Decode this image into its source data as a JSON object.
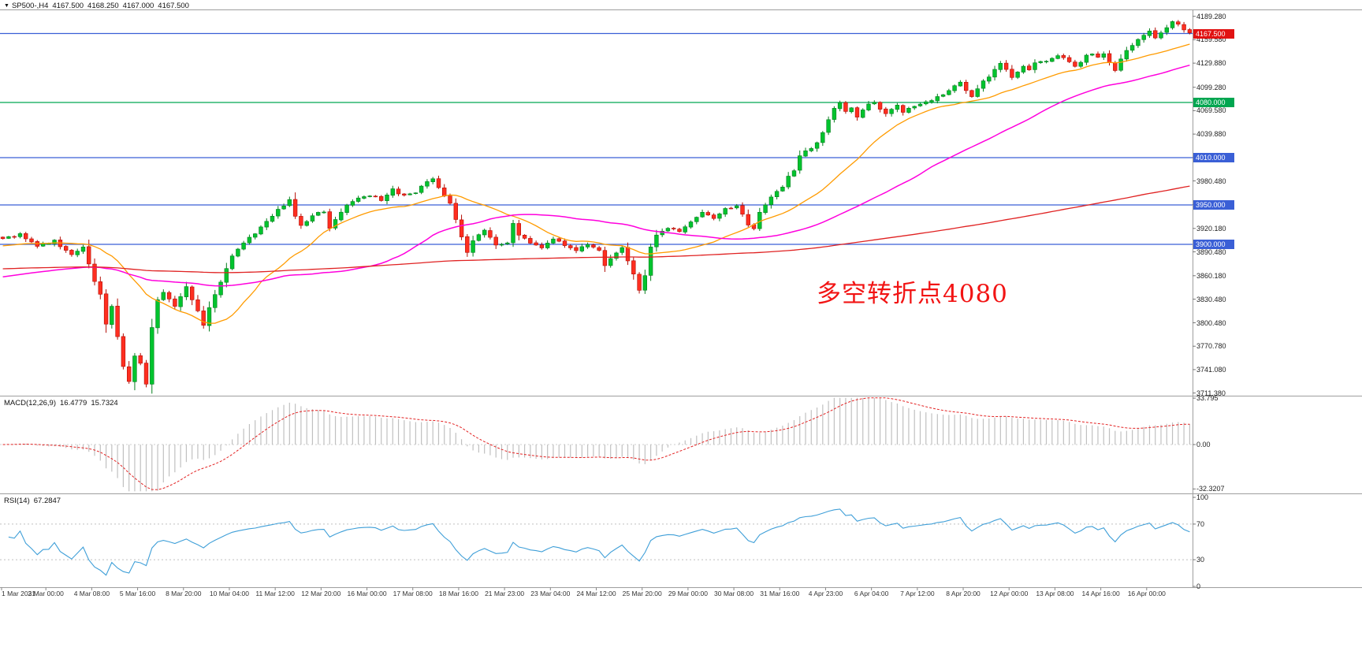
{
  "header": {
    "dropdown_icon": "▼",
    "symbol": "SP500-,H4",
    "open": "4167.500",
    "high": "4168.250",
    "low": "4167.000",
    "close": "4167.500"
  },
  "indicators": {
    "macd": {
      "label": "MACD(12,26,9)",
      "value_macd": "16.4779",
      "value_signal": "15.7324"
    },
    "rsi": {
      "label": "RSI(14)",
      "value": "67.2847"
    }
  },
  "annotation": {
    "text": "多空转折点4080",
    "color": "#f21414"
  },
  "chart_data": {
    "type": "candlestick",
    "symbol": "SP500-",
    "timeframe": "H4",
    "bars": 208,
    "quote": {
      "open": 4167.5,
      "high": 4168.25,
      "low": 4167.0,
      "close": 4167.5
    },
    "price_axis": {
      "side": "right",
      "top_price": 4198,
      "bottom_price": 3709,
      "ticks": [
        "4189.280",
        "4159.580",
        "4129.880",
        "4099.280",
        "4069.580",
        "4039.880",
        "4010.180",
        "3980.480",
        "3950.480",
        "3920.180",
        "3890.480",
        "3860.180",
        "3830.480",
        "3800.480",
        "3770.780",
        "3741.080",
        "3711.380"
      ]
    },
    "levels": [
      {
        "name": "current-price",
        "price": 4167.5,
        "line_color": "#3a5fd6",
        "badge": "4167.500",
        "badge_color": "#e11212"
      },
      {
        "name": "pivot-4080",
        "price": 4080,
        "line_color": "#00a650",
        "badge": "4080.000",
        "badge_color": "#00a650"
      },
      {
        "name": "level-4010",
        "price": 4010,
        "line_color": "#3a5fd6",
        "badge": "4010.000",
        "badge_color": "#3a5fd6"
      },
      {
        "name": "level-3950",
        "price": 3950,
        "line_color": "#3a5fd6",
        "badge": "3950.000",
        "badge_color": "#3a5fd6"
      },
      {
        "name": "level-3900",
        "price": 3900,
        "line_color": "#3a5fd6",
        "badge": "3900.000",
        "badge_color": "#3a5fd6"
      }
    ],
    "candle_colors": {
      "up": "#00c42e",
      "up_border": "#067f1e",
      "down": "#fe2e20",
      "down_border": "#b30d05"
    },
    "moving_averages": [
      {
        "name": "fast",
        "period": 20,
        "prehistory": 3898,
        "color": "#ff9b00",
        "width": 1.3
      },
      {
        "name": "mid",
        "period": 50,
        "prehistory": 3858,
        "color": "#ff00dd",
        "width": 1.5
      },
      {
        "name": "slow",
        "period": 200,
        "prehistory": 3869,
        "color": "#e02222",
        "width": 1.3
      }
    ],
    "close_waypoints": [
      [
        0,
        3906
      ],
      [
        3,
        3913
      ],
      [
        6,
        3897
      ],
      [
        9,
        3905
      ],
      [
        12,
        3886
      ],
      [
        14,
        3898
      ],
      [
        16,
        3852
      ],
      [
        17,
        3836
      ],
      [
        18,
        3800
      ],
      [
        19,
        3822
      ],
      [
        20,
        3783
      ],
      [
        21,
        3744
      ],
      [
        22,
        3726
      ],
      [
        23,
        3760
      ],
      [
        24,
        3748
      ],
      [
        25,
        3722
      ],
      [
        26,
        3794
      ],
      [
        27,
        3830
      ],
      [
        28,
        3839
      ],
      [
        30,
        3822
      ],
      [
        32,
        3846
      ],
      [
        34,
        3814
      ],
      [
        35,
        3797
      ],
      [
        36,
        3820
      ],
      [
        38,
        3852
      ],
      [
        40,
        3886
      ],
      [
        42,
        3902
      ],
      [
        44,
        3914
      ],
      [
        46,
        3930
      ],
      [
        48,
        3943
      ],
      [
        50,
        3957
      ],
      [
        51,
        3937
      ],
      [
        52,
        3923
      ],
      [
        54,
        3937
      ],
      [
        56,
        3941
      ],
      [
        57,
        3921
      ],
      [
        58,
        3932
      ],
      [
        60,
        3951
      ],
      [
        62,
        3958
      ],
      [
        64,
        3963
      ],
      [
        66,
        3956
      ],
      [
        68,
        3969
      ],
      [
        70,
        3961
      ],
      [
        72,
        3966
      ],
      [
        74,
        3981
      ],
      [
        75,
        3984
      ],
      [
        76,
        3971
      ],
      [
        78,
        3953
      ],
      [
        80,
        3909
      ],
      [
        81,
        3891
      ],
      [
        82,
        3906
      ],
      [
        84,
        3919
      ],
      [
        86,
        3899
      ],
      [
        88,
        3903
      ],
      [
        89,
        3926
      ],
      [
        90,
        3913
      ],
      [
        92,
        3901
      ],
      [
        94,
        3896
      ],
      [
        96,
        3906
      ],
      [
        98,
        3899
      ],
      [
        100,
        3891
      ],
      [
        102,
        3901
      ],
      [
        104,
        3893
      ],
      [
        105,
        3873
      ],
      [
        106,
        3881
      ],
      [
        108,
        3896
      ],
      [
        110,
        3863
      ],
      [
        111,
        3841
      ],
      [
        112,
        3859
      ],
      [
        113,
        3896
      ],
      [
        114,
        3911
      ],
      [
        116,
        3921
      ],
      [
        118,
        3916
      ],
      [
        120,
        3929
      ],
      [
        122,
        3941
      ],
      [
        124,
        3933
      ],
      [
        126,
        3946
      ],
      [
        128,
        3949
      ],
      [
        130,
        3926
      ],
      [
        131,
        3921
      ],
      [
        132,
        3941
      ],
      [
        134,
        3959
      ],
      [
        136,
        3973
      ],
      [
        137,
        3986
      ],
      [
        138,
        3993
      ],
      [
        139,
        4011
      ],
      [
        140,
        4019
      ],
      [
        141,
        4021
      ],
      [
        142,
        4029
      ],
      [
        143,
        4043
      ],
      [
        144,
        4059
      ],
      [
        145,
        4073
      ],
      [
        146,
        4079
      ],
      [
        147,
        4069
      ],
      [
        148,
        4073
      ],
      [
        149,
        4061
      ],
      [
        150,
        4071
      ],
      [
        151,
        4079
      ],
      [
        152,
        4081
      ],
      [
        153,
        4073
      ],
      [
        154,
        4066
      ],
      [
        155,
        4073
      ],
      [
        156,
        4076
      ],
      [
        157,
        4069
      ],
      [
        158,
        4073
      ],
      [
        159,
        4076
      ],
      [
        160,
        4078
      ],
      [
        162,
        4083
      ],
      [
        164,
        4091
      ],
      [
        166,
        4101
      ],
      [
        167,
        4106
      ],
      [
        168,
        4094
      ],
      [
        169,
        4086
      ],
      [
        170,
        4096
      ],
      [
        171,
        4106
      ],
      [
        172,
        4113
      ],
      [
        173,
        4121
      ],
      [
        174,
        4129
      ],
      [
        175,
        4123
      ],
      [
        176,
        4113
      ],
      [
        177,
        4119
      ],
      [
        178,
        4126
      ],
      [
        179,
        4121
      ],
      [
        180,
        4129
      ],
      [
        182,
        4133
      ],
      [
        184,
        4139
      ],
      [
        186,
        4133
      ],
      [
        187,
        4126
      ],
      [
        188,
        4131
      ],
      [
        189,
        4139
      ],
      [
        190,
        4143
      ],
      [
        191,
        4136
      ],
      [
        192,
        4143
      ],
      [
        193,
        4131
      ],
      [
        194,
        4121
      ],
      [
        195,
        4136
      ],
      [
        196,
        4146
      ],
      [
        197,
        4153
      ],
      [
        198,
        4159
      ],
      [
        199,
        4166
      ],
      [
        200,
        4171
      ],
      [
        201,
        4163
      ],
      [
        202,
        4169
      ],
      [
        203,
        4176
      ],
      [
        204,
        4183
      ],
      [
        205,
        4179
      ],
      [
        206,
        4173
      ],
      [
        207,
        4167.5
      ]
    ],
    "macd": {
      "fast": 12,
      "slow": 26,
      "signal_period": 9,
      "range": 35,
      "axis_labels": [
        "33.795",
        "0.00",
        "-32.3207"
      ],
      "hist_color": "#c0c0c0",
      "signal_color": "#e32222",
      "current_macd": 16.4779,
      "current_signal": 15.7324
    },
    "rsi": {
      "period": 14,
      "axis_labels": [
        "100",
        "70",
        "30",
        "0"
      ],
      "levels": [
        70,
        30
      ],
      "color": "#3f9fd8",
      "current": 67.2847
    },
    "time_labels": [
      "1 Mar 2021",
      "3 Mar 00:00",
      "4 Mar 08:00",
      "5 Mar 16:00",
      "8 Mar 20:00",
      "10 Mar 04:00",
      "11 Mar 12:00",
      "12 Mar 20:00",
      "16 Mar 00:00",
      "17 Mar 08:00",
      "18 Mar 16:00",
      "21 Mar 23:00",
      "23 Mar 04:00",
      "24 Mar 12:00",
      "25 Mar 20:00",
      "29 Mar 00:00",
      "30 Mar 08:00",
      "31 Mar 16:00",
      "4 Apr 23:00",
      "6 Apr 04:00",
      "7 Apr 12:00",
      "8 Apr 20:00",
      "12 Apr 00:00",
      "13 Apr 08:00",
      "14 Apr 16:00",
      "16 Apr 00:00"
    ]
  }
}
